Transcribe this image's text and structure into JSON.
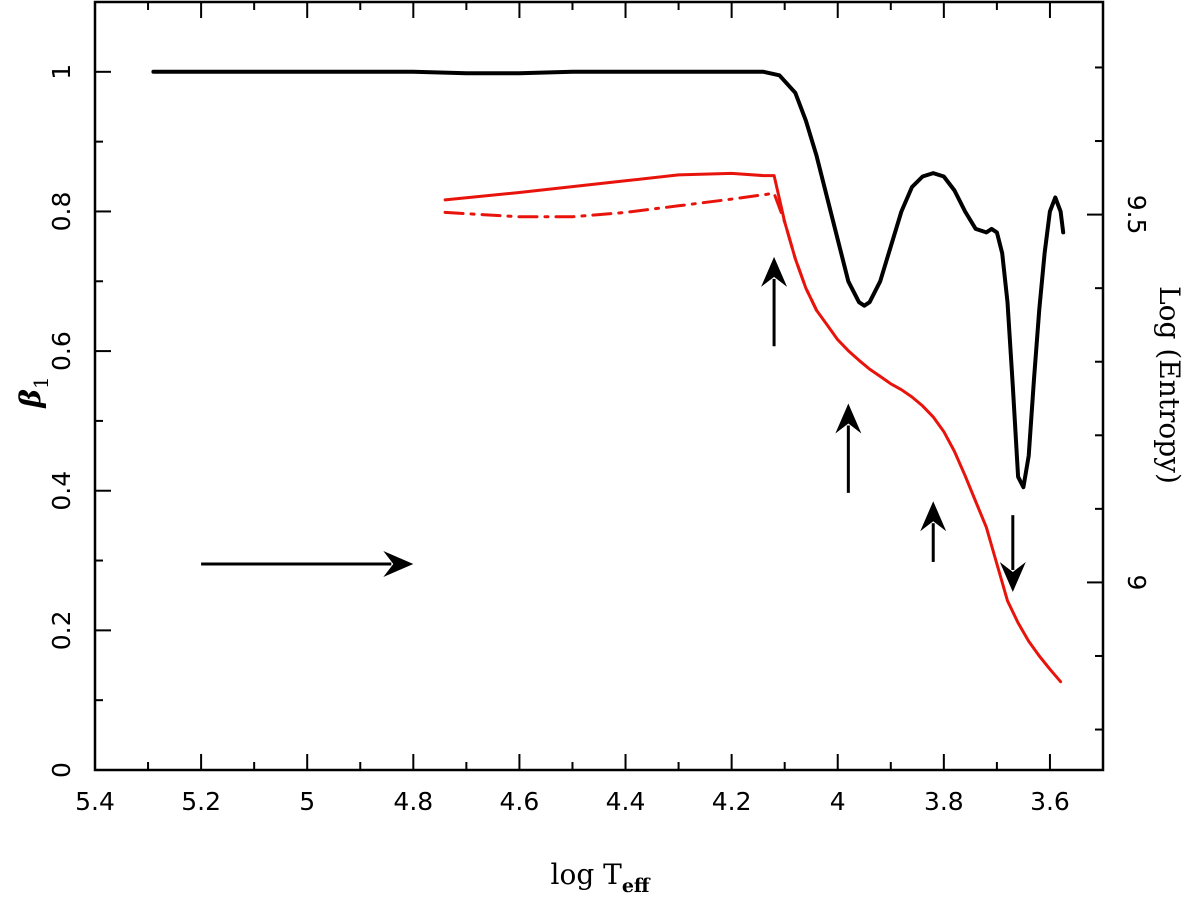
{
  "chart_data": {
    "type": "line",
    "xlabel": "log T",
    "xlabel_sub": "eff",
    "ylabel_left": "β",
    "ylabel_left_sub": "1",
    "ylabel_right": "Log (Entropy)",
    "x_range": [
      5.4,
      3.5
    ],
    "y_left_range": [
      0,
      1.1
    ],
    "y_right_range": [
      8.745,
      9.789
    ],
    "x_ticks": [
      5.4,
      5.2,
      5.0,
      4.8,
      4.6,
      4.4,
      4.2,
      4.0,
      3.8,
      3.6
    ],
    "x_tick_labels": [
      "5.4",
      "5.2",
      "5",
      "4.8",
      "4.6",
      "4.4",
      "4.2",
      "4",
      "3.8",
      "3.6"
    ],
    "y_left_ticks": [
      0,
      0.2,
      0.4,
      0.6,
      0.8,
      1.0
    ],
    "y_left_tick_labels": [
      "0",
      "0.2",
      "0.4",
      "0.6",
      "0.8",
      "1"
    ],
    "y_right_ticks": [
      9.0,
      9.5
    ],
    "y_right_tick_labels": [
      "9",
      "9.5"
    ],
    "colors": {
      "beta": "#000000",
      "entropy": "#e8140c",
      "arrow": "#000000"
    },
    "series": [
      {
        "name": "beta1",
        "axis": "left",
        "color": "#000000",
        "style": "solid",
        "x": [
          5.29,
          5.2,
          5.1,
          5.0,
          4.9,
          4.8,
          4.7,
          4.6,
          4.5,
          4.4,
          4.3,
          4.2,
          4.14,
          4.11,
          4.08,
          4.06,
          4.04,
          4.02,
          4.0,
          3.98,
          3.96,
          3.95,
          3.94,
          3.92,
          3.9,
          3.88,
          3.86,
          3.84,
          3.82,
          3.8,
          3.78,
          3.76,
          3.74,
          3.72,
          3.71,
          3.7,
          3.69,
          3.68,
          3.67,
          3.66,
          3.65,
          3.64,
          3.63,
          3.62,
          3.61,
          3.6,
          3.59,
          3.58,
          3.575
        ],
        "y": [
          1.0,
          1.0,
          1.0,
          1.0,
          1.0,
          1.0,
          0.998,
          0.998,
          1.0,
          1.0,
          1.0,
          1.0,
          1.0,
          0.995,
          0.97,
          0.93,
          0.88,
          0.82,
          0.76,
          0.7,
          0.67,
          0.665,
          0.67,
          0.7,
          0.75,
          0.8,
          0.835,
          0.85,
          0.855,
          0.85,
          0.83,
          0.8,
          0.775,
          0.77,
          0.775,
          0.77,
          0.74,
          0.67,
          0.55,
          0.42,
          0.405,
          0.45,
          0.56,
          0.66,
          0.74,
          0.8,
          0.82,
          0.8,
          0.77
        ]
      },
      {
        "name": "log-entropy",
        "axis": "right",
        "color": "#e8140c",
        "style": "solid",
        "x": [
          4.74,
          4.6,
          4.4,
          4.3,
          4.2,
          4.14,
          4.12,
          4.1,
          4.08,
          4.06,
          4.04,
          4.02,
          4.0,
          3.98,
          3.96,
          3.94,
          3.92,
          3.9,
          3.88,
          3.86,
          3.84,
          3.82,
          3.8,
          3.78,
          3.76,
          3.74,
          3.72,
          3.7,
          3.68,
          3.66,
          3.64,
          3.62,
          3.6,
          3.58
        ],
        "y": [
          9.52,
          9.53,
          9.546,
          9.554,
          9.556,
          9.553,
          9.553,
          9.49,
          9.44,
          9.4,
          9.37,
          9.35,
          9.33,
          9.315,
          9.302,
          9.29,
          9.28,
          9.27,
          9.262,
          9.252,
          9.24,
          9.225,
          9.205,
          9.178,
          9.145,
          9.11,
          9.075,
          9.025,
          8.975,
          8.945,
          8.92,
          8.9,
          8.882,
          8.865
        ]
      },
      {
        "name": "log-entropy-alt",
        "axis": "right",
        "color": "#e8140c",
        "style": "dashdot",
        "x": [
          4.74,
          4.6,
          4.5,
          4.4,
          4.3,
          4.2,
          4.12,
          4.1,
          4.08,
          4.06,
          4.04
        ],
        "y": [
          9.503,
          9.497,
          9.497,
          9.503,
          9.512,
          9.521,
          9.529,
          9.49,
          9.44,
          9.4,
          9.37
        ]
      }
    ],
    "arrows": [
      {
        "name": "arrow-evolution-direction",
        "from": [
          5.2,
          0.295
        ],
        "to": [
          4.8,
          0.295
        ],
        "axis": "left"
      },
      {
        "name": "arrow-up-4.12",
        "from": [
          4.12,
          0.607
        ],
        "to": [
          4.12,
          0.735
        ],
        "axis": "left"
      },
      {
        "name": "arrow-up-3.98",
        "from": [
          3.98,
          0.397
        ],
        "to": [
          3.98,
          0.525
        ],
        "axis": "left"
      },
      {
        "name": "arrow-up-3.82",
        "from": [
          3.82,
          0.298
        ],
        "to": [
          3.82,
          0.385
        ],
        "axis": "left"
      },
      {
        "name": "arrow-down-3.67",
        "from": [
          3.67,
          0.365
        ],
        "to": [
          3.67,
          0.255
        ],
        "axis": "left"
      }
    ]
  }
}
